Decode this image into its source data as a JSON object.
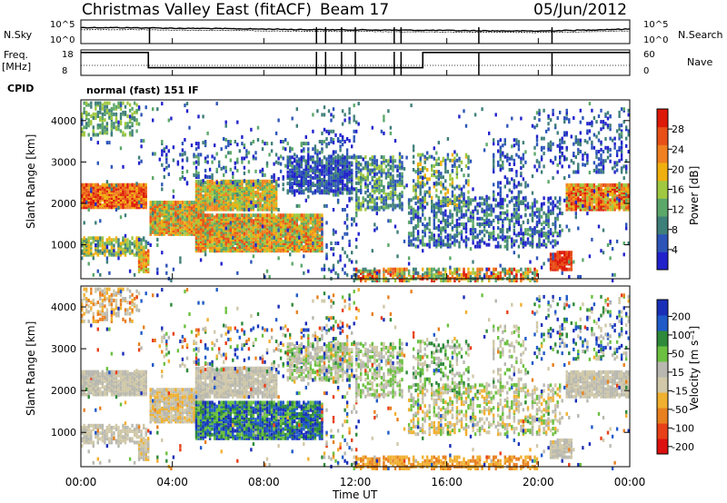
{
  "header": {
    "title": "Christmas Valley East (fitACF)",
    "beam": "Beam 17",
    "date": "05/Jun/2012"
  },
  "left_labels": {
    "nsky": "N.Sky",
    "freq": "Freq.",
    "freq_unit": "[MHz]",
    "cpid": "CPID",
    "cpid_value": "normal (fast) 151 IF"
  },
  "right_labels": {
    "nsearch": "N.Search",
    "nave": "Nave"
  },
  "ticks": {
    "noise_left": [
      "10^5",
      "10^0"
    ],
    "noise_right": [
      "10^5",
      "10^0"
    ],
    "freq_left": [
      "18",
      "8"
    ],
    "freq_right": [
      "60",
      "0"
    ]
  },
  "chart_data": [
    {
      "type": "line",
      "panel": "noise",
      "ylabel_left": "N.Sky",
      "ylabel_right": "N.Search",
      "yscale": "log",
      "ylim": [
        1,
        100000
      ],
      "x": [
        "00:00",
        "02:00",
        "04:00",
        "06:00",
        "08:00",
        "10:00",
        "12:00",
        "14:00",
        "16:00",
        "18:00",
        "20:00",
        "22:00",
        "24:00"
      ],
      "series": [
        {
          "name": "N.Sky",
          "values": [
            2500,
            2300,
            1800,
            1500,
            1200,
            900,
            800,
            700,
            600,
            500,
            450,
            700,
            1200
          ]
        },
        {
          "name": "N.Search",
          "values": [
            900,
            850,
            700,
            600,
            500,
            400,
            350,
            300,
            280,
            250,
            230,
            300,
            500
          ]
        }
      ]
    },
    {
      "type": "line",
      "panel": "frequency",
      "ylabel_left": "Freq. [MHz]",
      "ylabel_right": "Nave",
      "ylim_left": [
        8,
        18
      ],
      "ylim_right": [
        0,
        60
      ],
      "x": [
        "00:00",
        "03:00",
        "03:01",
        "15:00",
        "15:01",
        "24:00"
      ],
      "series": [
        {
          "name": "Freq.",
          "values": [
            17,
            17,
            11,
            11,
            17,
            17
          ]
        },
        {
          "name": "Nave",
          "values": [
            20,
            20,
            20,
            20,
            20,
            20
          ]
        }
      ]
    },
    {
      "type": "heatmap",
      "panel": "power",
      "ylabel": "Slant Range [km]",
      "colorbar_label": "Power [dB]",
      "colorbar_ticks": [
        "4",
        "8",
        "12",
        "16",
        "20",
        "24",
        "28"
      ],
      "yticks": [
        "1000",
        "2000",
        "3000",
        "4000"
      ],
      "ylim": [
        180,
        4500
      ]
    },
    {
      "type": "heatmap",
      "panel": "velocity",
      "ylabel": "Slant Range [km]",
      "colorbar_label": "Velocity [m s⁻¹]",
      "colorbar_ticks": [
        "200",
        "100",
        "50",
        "15",
        "-15",
        "-50",
        "-100",
        "-200"
      ],
      "yticks": [
        "1000",
        "2000",
        "3000",
        "4000"
      ],
      "ylim": [
        180,
        4500
      ]
    }
  ],
  "x_axis": {
    "ticks": [
      "00:00",
      "04:00",
      "08:00",
      "12:00",
      "16:00",
      "20:00",
      "00:00"
    ],
    "label": "Time UT"
  },
  "colors": {
    "power": [
      "#2222cc",
      "#2d55b8",
      "#3f7f7a",
      "#5ca86a",
      "#a0c840",
      "#f0b010",
      "#f08020",
      "#e85018",
      "#dd1a0a"
    ],
    "velocity": [
      "#1a2fb8",
      "#1f5ac8",
      "#2e8a3a",
      "#6cc040",
      "#b8b8b0",
      "#d0c8a8",
      "#f0b030",
      "#e88020",
      "#e84018",
      "#dd1010"
    ]
  }
}
